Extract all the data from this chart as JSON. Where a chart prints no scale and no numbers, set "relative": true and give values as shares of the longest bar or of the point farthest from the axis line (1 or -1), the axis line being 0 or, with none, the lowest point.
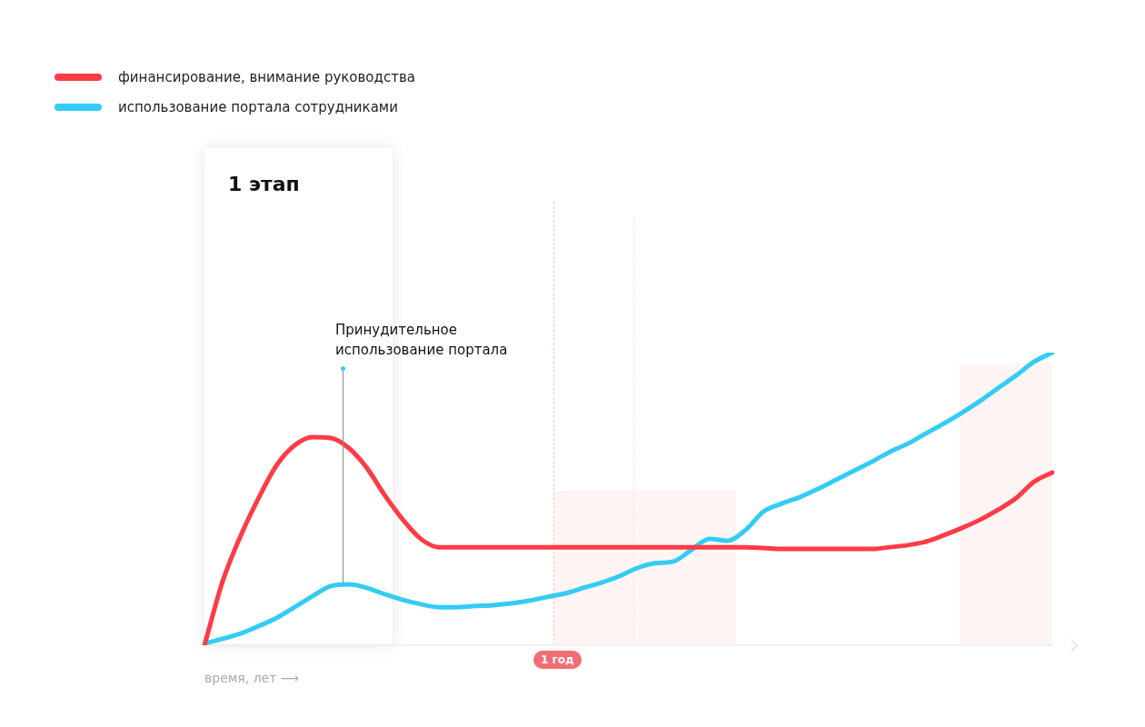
{
  "chart_data": {
    "type": "line",
    "relative": true,
    "xlabel": "время, лет ⟶",
    "legend": "top left",
    "marker": "none",
    "line_style": "solid",
    "categories": [
      null,
      null,
      null,
      null,
      null,
      null,
      null,
      null,
      null,
      null,
      null,
      null,
      null,
      null,
      null,
      null,
      null,
      null,
      null,
      null,
      null,
      null,
      null,
      null,
      null,
      null,
      null,
      null,
      null,
      null,
      null,
      null,
      null,
      null,
      null,
      null,
      null,
      null,
      null,
      null,
      null,
      null,
      null,
      null,
      null,
      null,
      null,
      null
    ],
    "series": [
      {
        "name": "финансирование, внимание руководства",
        "color": "#ff3b45",
        "values": [
          0,
          0.217,
          0.373,
          0.503,
          0.615,
          0.683,
          0.711,
          0.708,
          0.674,
          0.606,
          0.512,
          0.429,
          0.363,
          0.335,
          0.335,
          0.335,
          0.335,
          0.335,
          0.335,
          0.335,
          0.335,
          0.335,
          0.335,
          0.335,
          0.335,
          0.335,
          0.335,
          0.335,
          0.335,
          0.335,
          0.335,
          0.332,
          0.329,
          0.329,
          0.329,
          0.329,
          0.329,
          0.329,
          0.335,
          0.342,
          0.354,
          0.376,
          0.401,
          0.429,
          0.463,
          0.503,
          0.559,
          0.59
        ]
      },
      {
        "name": "использование портала сотрудниками",
        "color": "#33ccf5",
        "values": [
          0.006,
          0.022,
          0.04,
          0.065,
          0.093,
          0.13,
          0.168,
          0.202,
          0.208,
          0.196,
          0.174,
          0.155,
          0.14,
          0.13,
          0.13,
          0.134,
          0.137,
          0.143,
          0.152,
          0.165,
          0.177,
          0.196,
          0.214,
          0.236,
          0.264,
          0.28,
          0.286,
          0.326,
          0.363,
          0.357,
          0.394,
          0.457,
          0.484,
          0.506,
          0.534,
          0.565,
          0.596,
          0.627,
          0.661,
          0.689,
          0.724,
          0.758,
          0.795,
          0.835,
          0.879,
          0.922,
          0.969,
          1
        ]
      }
    ],
    "annotations": [
      "1 этап",
      "Принудительное использование портала",
      "1 год"
    ]
  }
}
